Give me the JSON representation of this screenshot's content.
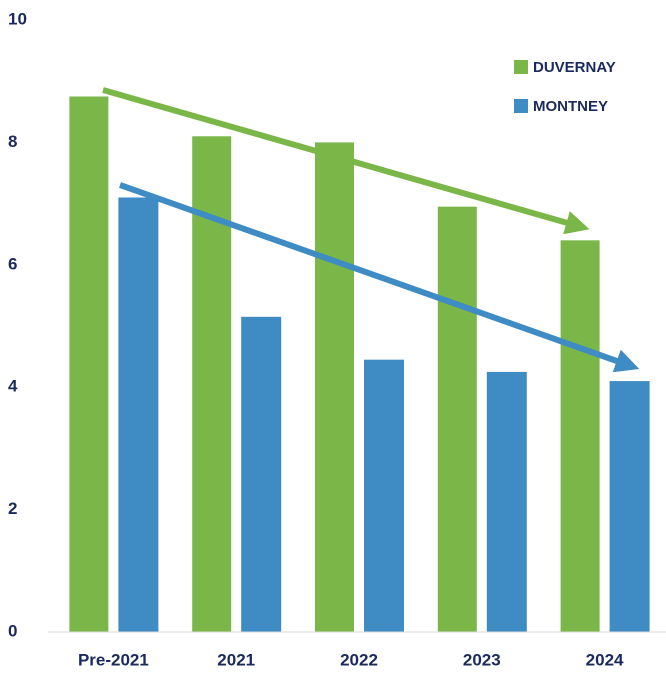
{
  "chart_data": {
    "type": "bar",
    "categories": [
      "Pre-2021",
      "2021",
      "2022",
      "2023",
      "2024"
    ],
    "series": [
      {
        "name": "DUVERNAY",
        "color": "#7ab648",
        "values": [
          8.75,
          8.1,
          8.0,
          6.95,
          6.4
        ]
      },
      {
        "name": "MONTNEY",
        "color": "#3f8bc4",
        "values": [
          7.1,
          5.15,
          4.45,
          4.25,
          4.1
        ]
      }
    ],
    "ylim": [
      0,
      10
    ],
    "yticks": [
      0,
      2,
      4,
      6,
      8,
      10
    ],
    "grid": false,
    "legend": "top-right"
  }
}
